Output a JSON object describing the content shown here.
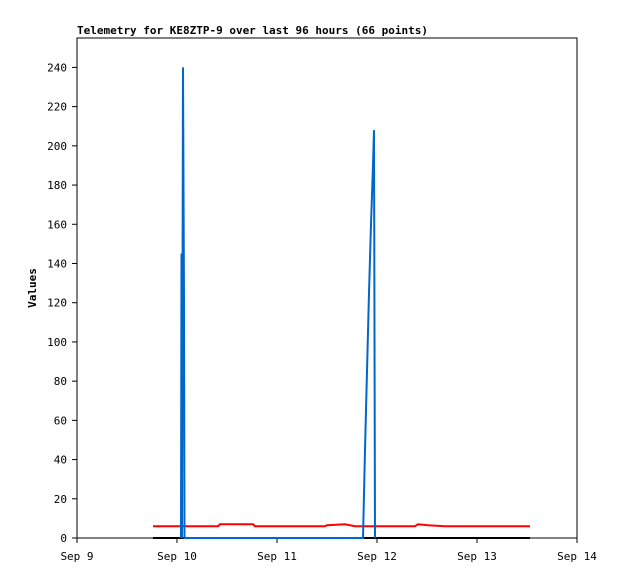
{
  "chart_data": {
    "type": "line",
    "title": "Telemetry for KE8ZTP-9 over last 96 hours (66 points)",
    "y_label": "Values",
    "xlim": [
      0,
      5
    ],
    "xticks": [
      {
        "value": 0,
        "label": "Sep 9"
      },
      {
        "value": 1,
        "label": "Sep 10"
      },
      {
        "value": 2,
        "label": "Sep 11"
      },
      {
        "value": 3,
        "label": "Sep 12"
      },
      {
        "value": 4,
        "label": "Sep 13"
      },
      {
        "value": 5,
        "label": "Sep 14"
      }
    ],
    "ylim": [
      0,
      255
    ],
    "yticks": [
      0,
      20,
      40,
      60,
      80,
      100,
      120,
      140,
      160,
      180,
      200,
      220,
      240
    ],
    "series": [
      {
        "color": "#000000",
        "x": [
          0.76,
          4.53
        ],
        "values": [
          0,
          0
        ]
      },
      {
        "color": "#ff0000",
        "x": [
          0.76,
          1.41,
          1.43,
          1.76,
          1.78,
          2.48,
          2.5,
          2.68,
          2.78,
          3.38,
          3.41,
          3.51,
          3.68,
          4.53
        ],
        "values": [
          6,
          6,
          7,
          7,
          6,
          6,
          6.5,
          7,
          6,
          6,
          7,
          6.5,
          6,
          6
        ]
      },
      {
        "color": "#0066cc",
        "x": [
          1.04,
          1.045,
          1.05,
          1.06,
          1.07,
          1.075,
          2.86,
          2.88,
          2.9,
          2.92,
          2.94,
          2.96,
          2.97,
          2.98
        ],
        "values": [
          0,
          145,
          0,
          240,
          120,
          0,
          0,
          45,
          85,
          125,
          160,
          190,
          208,
          0
        ]
      }
    ]
  }
}
